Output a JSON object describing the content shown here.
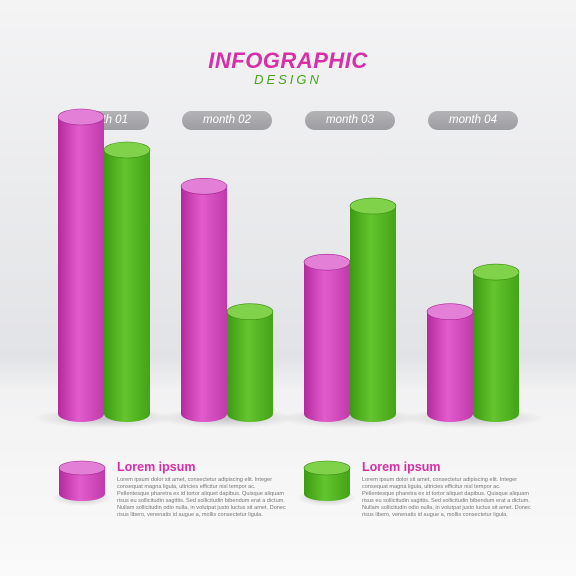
{
  "header": {
    "title": "INFOGRAPHIC",
    "subtitle": "DESIGN"
  },
  "colors": {
    "pink": "#d93fc2",
    "green": "#4cb31c",
    "title_pink": "#d62fa8",
    "subtitle_green": "#4aa51c"
  },
  "chart_data": {
    "type": "bar",
    "style": "3d-cylinder",
    "title": "INFOGRAPHIC",
    "subtitle": "DESIGN",
    "categories": [
      "month 01",
      "month 02",
      "month 03",
      "month 04"
    ],
    "series": [
      {
        "color": "#d93fc2",
        "values": [
          90,
          69,
          46,
          31
        ]
      },
      {
        "color": "#4cb31c",
        "values": [
          80,
          31,
          63,
          43
        ]
      }
    ],
    "ylim": [
      0,
      100
    ],
    "grid": false,
    "legend": "bottom"
  },
  "legend": [
    {
      "color": "#d93fc2",
      "title": "Lorem ipsum",
      "text": "Lorem ipsum dolor sit amet, consectetur adipiscing elit. Integer consequat magna ligula, ultricies efficitur nisl tempor ac. Pellentesque pharetra ex id tortor aliquet dapibus. Quisque aliquam risus eu sollicitudin sagittis. Sed sollicitudin bibendum erat a dictum. Nullam sollicitudin odio nulla, in volutpat justo luctus sit amet. Donec risus libero, venenatis id augue a, mollis consectetur ligula."
    },
    {
      "color": "#4cb31c",
      "title": "Lorem ipsum",
      "text": "Lorem ipsum dolor sit amet, consectetur adipiscing elit. Integer consequat magna ligula, ultricies efficitur nisl tempor ac. Pellentesque pharetra ex id tortor aliquet dapibus. Quisque aliquam risus eu sollicitudin sagittis. Sed sollicitudin bibendum erat a dictum. Nullam sollicitudin odio nulla, in volutpat justo luctus sit amet. Donec risus libero, venenatis id augue a, mollis consectetur ligula."
    }
  ]
}
